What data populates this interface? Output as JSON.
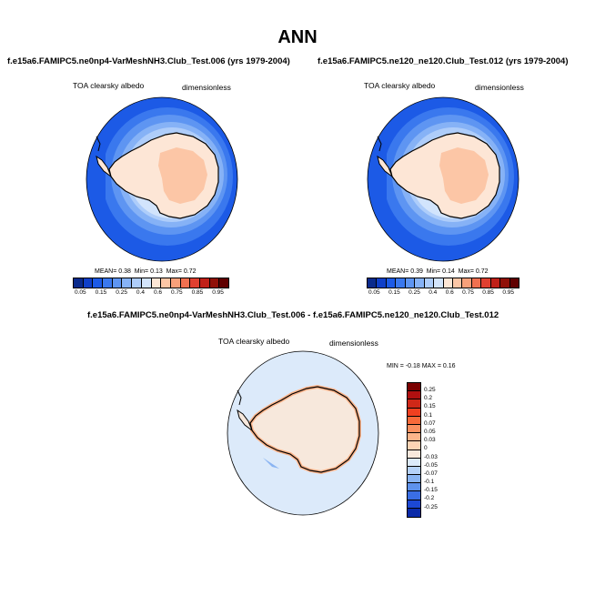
{
  "title": "ANN",
  "panels": [
    {
      "case": "f.e15a6.FAMIPC5.ne0np4-VarMeshNH3.Club_Test.006 (yrs 1979-2004)",
      "variable": "TOA clearsky albedo",
      "units": "dimensionless",
      "stats": {
        "mean_label": "MEAN=",
        "mean": "0.38",
        "min_label": "Min=",
        "min": "0.13",
        "max_label": "Max=",
        "max": "0.72"
      }
    },
    {
      "case": "f.e15a6.FAMIPC5.ne120_ne120.Club_Test.012 (yrs 1979-2004)",
      "variable": "TOA clearsky albedo",
      "units": "dimensionless",
      "stats": {
        "mean_label": "MEAN=",
        "mean": "0.39",
        "min_label": "Min=",
        "min": "0.14",
        "max_label": "Max=",
        "max": "0.72"
      }
    }
  ],
  "diff_panel": {
    "case": "f.e15a6.FAMIPC5.ne0np4-VarMeshNH3.Club_Test.006 - f.e15a6.FAMIPC5.ne120_ne120.Club_Test.012",
    "variable": "TOA clearsky albedo",
    "units": "dimensionless",
    "minmax": "MIN =  -0.18 MAX =   0.16"
  },
  "colorbar_abs": {
    "labels": [
      "0.05",
      "0.15",
      "0.25",
      "0.4",
      "0.6",
      "0.75",
      "0.85",
      "0.95"
    ],
    "colors": [
      "#0a2a8c",
      "#0f3fc8",
      "#1c5ae6",
      "#3a78ee",
      "#5e95f2",
      "#86b2f6",
      "#aecdfa",
      "#d2e4fc",
      "#fde6d6",
      "#fcc6a6",
      "#f8a07a",
      "#f07050",
      "#e04030",
      "#c02018",
      "#901008",
      "#600000"
    ]
  },
  "colorbar_diff": {
    "labels": [
      "0.25",
      "0.2",
      "0.15",
      "0.1",
      "0.07",
      "0.05",
      "0.03",
      "0",
      "-0.03",
      "-0.05",
      "-0.07",
      "-0.1",
      "-0.15",
      "-0.2",
      "-0.25"
    ],
    "colors": [
      "#7a0000",
      "#b01010",
      "#d02818",
      "#f04020",
      "#f86a3a",
      "#fa9060",
      "#fcb48a",
      "#fdd4b4",
      "#f7e8dc",
      "#dceafa",
      "#b6d2f8",
      "#8ab4f2",
      "#5e92ec",
      "#3a6ee4",
      "#1c48d4",
      "#0a2aa8"
    ]
  }
}
